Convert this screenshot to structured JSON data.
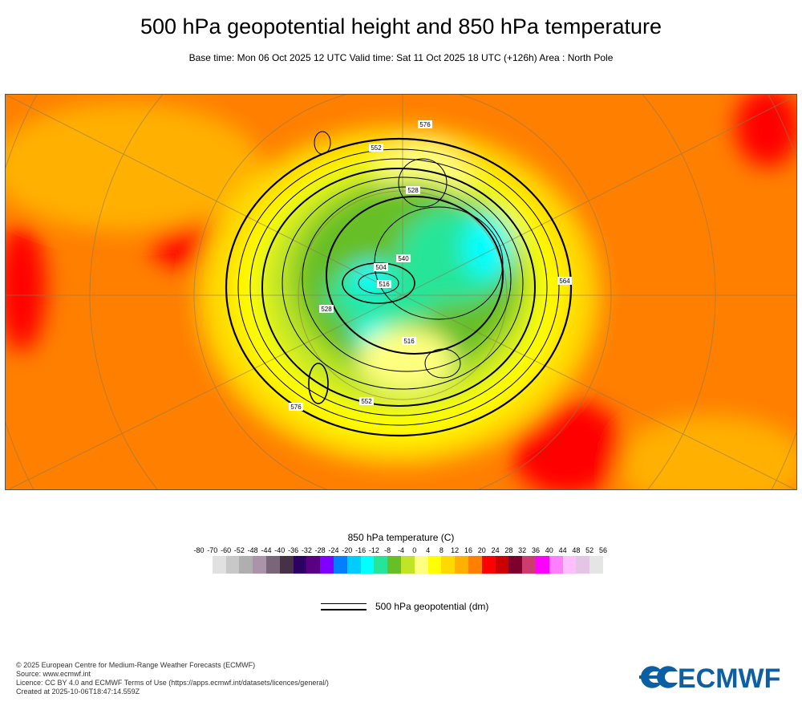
{
  "title": "500 hPa geopotential height and 850 hPa temperature",
  "subtitle": "Base time: Mon 06 Oct 2025 12 UTC Valid time: Sat 11 Oct 2025 18 UTC (+126h) Area : North Pole",
  "chart_data": {
    "type": "heatmap",
    "title": "500 hPa geopotential height and 850 hPa temperature",
    "projection": "polar stereographic, North Pole",
    "fields": [
      {
        "name": "850 hPa temperature",
        "units": "C",
        "style": "shaded"
      },
      {
        "name": "500 hPa geopotential",
        "units": "dm",
        "style": "contours"
      }
    ],
    "contour_labels": [
      "576",
      "552",
      "528",
      "516",
      "540",
      "564",
      "504",
      "516",
      "528",
      "552",
      "576"
    ],
    "colorbar": {
      "title": "850 hPa temperature (C)",
      "ticks": [
        "-80",
        "-70",
        "-60",
        "-52",
        "-48",
        "-44",
        "-40",
        "-36",
        "-32",
        "-28",
        "-24",
        "-20",
        "-16",
        "-12",
        "-8",
        "-4",
        "0",
        "4",
        "8",
        "12",
        "16",
        "20",
        "24",
        "28",
        "32",
        "36",
        "40",
        "44",
        "48",
        "52",
        "56"
      ],
      "colors": [
        "#ffffff",
        "#e1e1e1",
        "#c8c8c8",
        "#afafaf",
        "#ab94aa",
        "#7a6679",
        "#463146",
        "#2d0064",
        "#5a0082",
        "#7f00ff",
        "#007fff",
        "#00ccff",
        "#00ffff",
        "#26e599",
        "#66bf26",
        "#bfe526",
        "#ffff7f",
        "#ffff00",
        "#ffd900",
        "#ffb000",
        "#ff7f00",
        "#ff0000",
        "#cc0000",
        "#7f002c",
        "#cc3d6e",
        "#ff00ff",
        "#ff7fff",
        "#ffbfff",
        "#e5c5e5",
        "#e5e5e5"
      ]
    }
  },
  "legend": {
    "geopotential_label": "500 hPa geopotential (dm)"
  },
  "footer": {
    "lines": [
      "© 2025 European Centre for Medium-Range Weather Forecasts (ECMWF)",
      "Source: www.ecmwf.int",
      "Licence: CC BY 4.0 and ECMWF Terms of Use (https://apps.ecmwf.int/datasets/licences/general/)",
      "Created at 2025-10-06T18:47:14.559Z"
    ]
  },
  "logo": {
    "text": "ECMWF",
    "color": "#0d5fa3"
  }
}
